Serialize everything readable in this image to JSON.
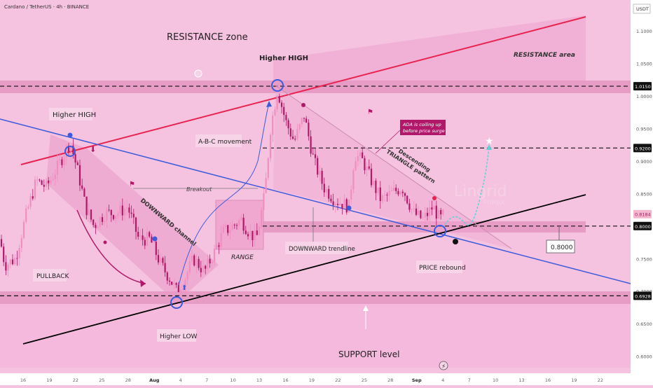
{
  "header": {
    "symbol_title": "Cardano / TetherUS · 4h · BINANCE"
  },
  "price_axis": {
    "unit_label": "USDT",
    "tick_labels": [
      "1.1000",
      "1.0500",
      "1.0000",
      "0.9500",
      "0.9000",
      "0.8500",
      "0.7500",
      "0.7000",
      "0.6500",
      "0.6000"
    ],
    "tick_values": [
      1.1,
      1.05,
      1.0,
      0.95,
      0.9,
      0.85,
      0.75,
      0.7,
      0.65,
      0.6
    ],
    "ylim": [
      0.585,
      1.12
    ],
    "badges": [
      {
        "label": "1.0150",
        "value": 1.015,
        "kind": "level"
      },
      {
        "label": "0.9200",
        "value": 0.92,
        "kind": "level"
      },
      {
        "label": "0.8184",
        "value": 0.8184,
        "kind": "price"
      },
      {
        "label": "0.8000",
        "value": 0.8,
        "kind": "level"
      },
      {
        "label": "0.6928",
        "value": 0.6928,
        "kind": "level"
      }
    ]
  },
  "time_axis": {
    "tick_labels": [
      "16",
      "19",
      "22",
      "25",
      "28",
      "Aug",
      "4",
      "7",
      "10",
      "13",
      "16",
      "19",
      "22",
      "25",
      "28",
      "Sep",
      "4",
      "7",
      "10",
      "13",
      "16",
      "19",
      "22"
    ],
    "bold_labels": [
      "Aug",
      "Sep"
    ]
  },
  "annotations": {
    "resistance_zone": "RESISTANCE zone",
    "resistance_area": "RESISTANCE area",
    "higher_high_left": "Higher HIGH",
    "higher_high_top": "Higher HIGH",
    "abc_movement": "A-B-C movement",
    "breakout": "Breakout",
    "downward_channel": "DOWNWARD channel",
    "pullback": "PULLBACK",
    "range": "RANGE",
    "downward_trendline": "DOWNWARD trendline",
    "descending_triangle": "Descending\nTRIANGLE pattern",
    "ada_note": "ADA is coiling up\nbefore price surge",
    "price_rebound": "PRICE rebound",
    "level_box": "0.8000",
    "higher_low": "Higher LOW",
    "support_level": "SUPPORT level",
    "brand": "Lingrid",
    "brand_sub": "FOREX"
  },
  "colors": {
    "background": "#f5c2e0",
    "resistance_band": "#e79cc6",
    "up_candle": "#f18ec0",
    "down_candle": "#b2186a",
    "resistance_line": "#e8224f",
    "blue_line": "#3b5bdb",
    "support_line": "#000000",
    "badge_dark": "#111111",
    "price_badge": "#f5b5cf",
    "projection": "#5fd0d8"
  },
  "chart_data": {
    "type": "candlestick",
    "title": "Cardano / TetherUS · 4h · BINANCE",
    "ylim": [
      0.585,
      1.12
    ],
    "levels": [
      1.015,
      0.92,
      0.8,
      0.6928
    ],
    "last_price": 0.8184,
    "swing_path": [
      [
        0,
        0.78
      ],
      [
        7,
        0.74
      ],
      [
        22,
        0.75
      ],
      [
        38,
        0.82
      ],
      [
        52,
        0.87
      ],
      [
        66,
        0.86
      ],
      [
        82,
        0.89
      ],
      [
        100,
        0.93
      ],
      [
        112,
        0.88
      ],
      [
        122,
        0.83
      ],
      [
        134,
        0.8
      ],
      [
        150,
        0.82
      ],
      [
        168,
        0.82
      ],
      [
        182,
        0.83
      ],
      [
        198,
        0.78
      ],
      [
        214,
        0.78
      ],
      [
        230,
        0.74
      ],
      [
        242,
        0.72
      ],
      [
        252,
        0.7
      ],
      [
        264,
        0.72
      ],
      [
        276,
        0.75
      ],
      [
        292,
        0.73
      ],
      [
        306,
        0.76
      ],
      [
        318,
        0.79
      ],
      [
        332,
        0.8
      ],
      [
        344,
        0.81
      ],
      [
        356,
        0.79
      ],
      [
        366,
        0.78
      ],
      [
        378,
        0.85
      ],
      [
        386,
        0.95
      ],
      [
        396,
        1.01
      ],
      [
        408,
        0.96
      ],
      [
        420,
        0.93
      ],
      [
        434,
        0.97
      ],
      [
        448,
        0.9
      ],
      [
        462,
        0.86
      ],
      [
        478,
        0.84
      ],
      [
        498,
        0.83
      ],
      [
        506,
        0.91
      ],
      [
        518,
        0.9
      ],
      [
        530,
        0.87
      ],
      [
        544,
        0.84
      ],
      [
        558,
        0.85
      ],
      [
        574,
        0.86
      ],
      [
        590,
        0.82
      ],
      [
        604,
        0.81
      ],
      [
        618,
        0.83
      ],
      [
        628,
        0.81
      ],
      [
        634,
        0.8184
      ]
    ],
    "projection": [
      [
        632,
        0.81
      ],
      [
        660,
        0.84
      ],
      [
        690,
        0.83
      ],
      [
        700,
        0.91
      ]
    ]
  }
}
